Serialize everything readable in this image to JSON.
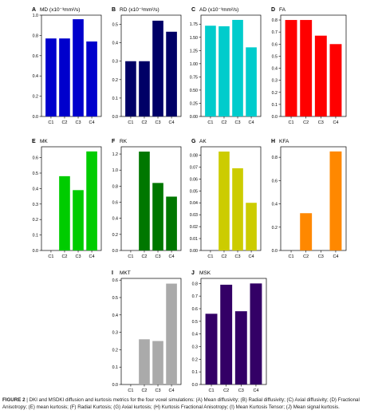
{
  "figure": {
    "label": "FIGURE 2",
    "caption": "| DKI and MSDKI diffusion and kurtosis metrics for the four voxel simulations: (A) Mean diffusivity; (B) Radial diffusivity; (C) Axial diffusivity; (D) Fractional Anisotropy; (E) mean kurtosis; (F) Radial Kurtosis; (G) Axial kurtosis; (H) Kurtosis Fractional Anisotropy; (I) Mean Kurtosis Tensor; (J) Mean signal kurtosis."
  },
  "chart_data": [
    {
      "panel": "A",
      "title": "MD (x10⁻³mm²/s)",
      "type": "bar",
      "color": "#0000cc",
      "categories": [
        "C1",
        "C2",
        "C3",
        "C4"
      ],
      "values": [
        0.77,
        0.77,
        0.96,
        0.74
      ],
      "ylim": [
        0,
        1.0
      ],
      "yticks": [
        "0.0",
        "0.2",
        "0.4",
        "0.6",
        "0.8",
        "1.0"
      ],
      "ytick_values": [
        0,
        0.2,
        0.4,
        0.6,
        0.8,
        1.0
      ]
    },
    {
      "panel": "B",
      "title": "RD (x10⁻³mm²/s)",
      "type": "bar",
      "color": "#000066",
      "categories": [
        "C1",
        "C2",
        "C3",
        "C4"
      ],
      "values": [
        0.3,
        0.3,
        0.52,
        0.46
      ],
      "ylim": [
        0,
        0.55
      ],
      "yticks": [
        "0.0",
        "0.1",
        "0.2",
        "0.3",
        "0.4",
        "0.5"
      ],
      "ytick_values": [
        0,
        0.1,
        0.2,
        0.3,
        0.4,
        0.5
      ]
    },
    {
      "panel": "C",
      "title": "AD (x10⁻³mm²/s)",
      "type": "bar",
      "color": "#00cccc",
      "categories": [
        "C1",
        "C2",
        "C3",
        "C4"
      ],
      "values": [
        1.72,
        1.71,
        1.83,
        1.31
      ],
      "ylim": [
        0,
        1.92
      ],
      "yticks": [
        "0.00",
        "0.25",
        "0.50",
        "0.75",
        "1.00",
        "1.25",
        "1.50",
        "1.75"
      ],
      "ytick_values": [
        0,
        0.25,
        0.5,
        0.75,
        1.0,
        1.25,
        1.5,
        1.75
      ]
    },
    {
      "panel": "D",
      "title": "FA",
      "type": "bar",
      "color": "#ff0000",
      "categories": [
        "C1",
        "C2",
        "C3",
        "C4"
      ],
      "values": [
        0.8,
        0.8,
        0.67,
        0.6
      ],
      "ylim": [
        0,
        0.84
      ],
      "yticks": [
        "0.0",
        "0.1",
        "0.2",
        "0.3",
        "0.4",
        "0.5",
        "0.6",
        "0.7",
        "0.8"
      ],
      "ytick_values": [
        0,
        0.1,
        0.2,
        0.3,
        0.4,
        0.5,
        0.6,
        0.7,
        0.8
      ]
    },
    {
      "panel": "E",
      "title": "MK",
      "type": "bar",
      "color": "#00cc00",
      "categories": [
        "C1",
        "C2",
        "C3",
        "C4"
      ],
      "values": [
        0,
        0.48,
        0.39,
        0.64
      ],
      "ylim": [
        0,
        0.67
      ],
      "yticks": [
        "0.0",
        "0.1",
        "0.2",
        "0.3",
        "0.4",
        "0.5",
        "0.6"
      ],
      "ytick_values": [
        0,
        0.1,
        0.2,
        0.3,
        0.4,
        0.5,
        0.6
      ]
    },
    {
      "panel": "F",
      "title": "RK",
      "type": "bar",
      "color": "#007700",
      "categories": [
        "C1",
        "C2",
        "C3",
        "C4"
      ],
      "values": [
        0,
        1.23,
        0.84,
        0.67
      ],
      "ylim": [
        0,
        1.29
      ],
      "yticks": [
        "0.0",
        "0.2",
        "0.4",
        "0.6",
        "0.8",
        "1.0",
        "1.2"
      ],
      "ytick_values": [
        0,
        0.2,
        0.4,
        0.6,
        0.8,
        1.0,
        1.2
      ]
    },
    {
      "panel": "G",
      "title": "AK",
      "type": "bar",
      "color": "#cccc00",
      "categories": [
        "C1",
        "C2",
        "C3",
        "C4"
      ],
      "values": [
        0,
        0.083,
        0.069,
        0.04
      ],
      "ylim": [
        0,
        0.087
      ],
      "yticks": [
        "0.00",
        "0.01",
        "0.02",
        "0.03",
        "0.04",
        "0.05",
        "0.06",
        "0.07",
        "0.08"
      ],
      "ytick_values": [
        0,
        0.01,
        0.02,
        0.03,
        0.04,
        0.05,
        0.06,
        0.07,
        0.08
      ]
    },
    {
      "panel": "H",
      "title": "KFA",
      "type": "bar",
      "color": "#ff8800",
      "categories": [
        "C1",
        "C2",
        "C3",
        "C4"
      ],
      "values": [
        0,
        0.32,
        0,
        0.85
      ],
      "ylim": [
        0,
        0.89
      ],
      "yticks": [
        "0.0",
        "0.2",
        "0.4",
        "0.6",
        "0.8"
      ],
      "ytick_values": [
        0,
        0.2,
        0.4,
        0.6,
        0.8
      ]
    },
    {
      "panel": "I",
      "title": "MKT",
      "type": "bar",
      "color": "#aaaaaa",
      "categories": [
        "C1",
        "C2",
        "C3",
        "C4"
      ],
      "values": [
        0,
        0.26,
        0.25,
        0.58
      ],
      "ylim": [
        0,
        0.61
      ],
      "yticks": [
        "0.0",
        "0.1",
        "0.2",
        "0.3",
        "0.4",
        "0.5",
        "0.6"
      ],
      "ytick_values": [
        0,
        0.1,
        0.2,
        0.3,
        0.4,
        0.5,
        0.6
      ]
    },
    {
      "panel": "J",
      "title": "MSK",
      "type": "bar",
      "color": "#330066",
      "categories": [
        "C1",
        "C2",
        "C3",
        "C4"
      ],
      "values": [
        0.56,
        0.79,
        0.58,
        0.8
      ],
      "ylim": [
        0,
        0.84
      ],
      "yticks": [
        "0.0",
        "0.1",
        "0.2",
        "0.3",
        "0.4",
        "0.5",
        "0.6",
        "0.7",
        "0.8"
      ],
      "ytick_values": [
        0,
        0.1,
        0.2,
        0.3,
        0.4,
        0.5,
        0.6,
        0.7,
        0.8
      ]
    }
  ]
}
